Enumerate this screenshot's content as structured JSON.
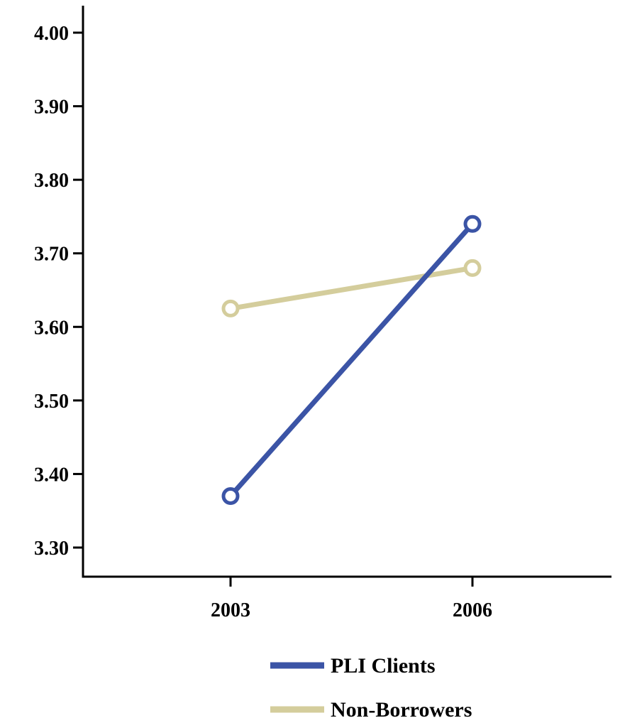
{
  "chart_data": {
    "type": "line",
    "title": "",
    "xlabel": "",
    "ylabel": "",
    "categories": [
      "2003",
      "2006"
    ],
    "ylim": [
      3.26,
      4.07
    ],
    "yticks": [
      "3.30",
      "3.40",
      "3.50",
      "3.60",
      "3.70",
      "3.80",
      "3.90",
      "4.00"
    ],
    "grid": false,
    "legend_position": "bottom",
    "series": [
      {
        "name": "PLI Clients",
        "color": "#3b54a6",
        "values": [
          3.37,
          3.74
        ]
      },
      {
        "name": "Non-Borrowers",
        "color": "#d4cd9c",
        "values": [
          3.625,
          3.68
        ]
      }
    ]
  }
}
